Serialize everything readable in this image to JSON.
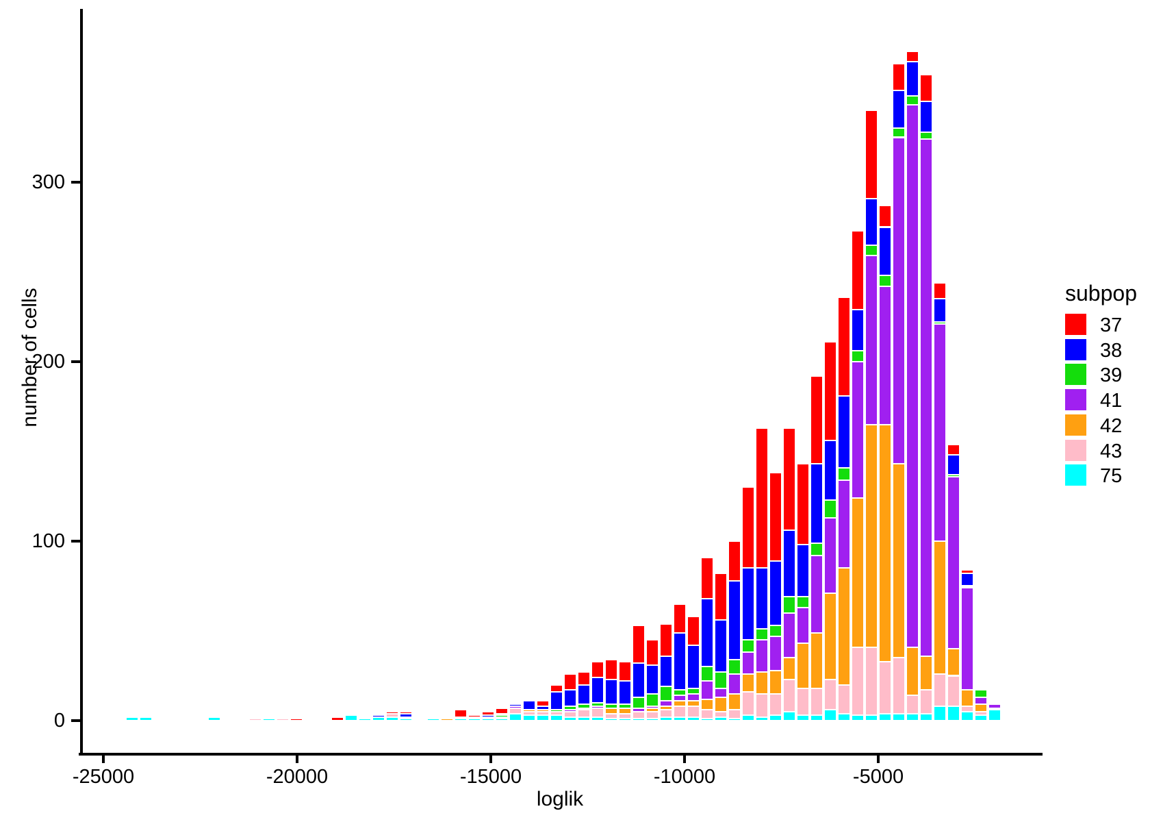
{
  "figure": {
    "background": "#FFFFFF"
  },
  "chart_data": {
    "type": "bar",
    "subtype": "stacked-histogram",
    "title": "",
    "xlabel": "loglik",
    "ylabel": "number of cells",
    "x_ticks": [
      -25000,
      -20000,
      -15000,
      -10000,
      -5000
    ],
    "y_ticks": [
      0,
      100,
      200,
      300
    ],
    "xlim": [
      -25640,
      -760
    ],
    "ylim": [
      0,
      397
    ],
    "grid": false,
    "bin_width": 353,
    "legend": {
      "title": "subpop",
      "position": "right",
      "entries": [
        {
          "label": "37",
          "color": "#FF0000"
        },
        {
          "label": "38",
          "color": "#0000FF"
        },
        {
          "label": "39",
          "color": "#14DD0C"
        },
        {
          "label": "41",
          "color": "#A020F0"
        },
        {
          "label": "42",
          "color": "#FFA011"
        },
        {
          "label": "43",
          "color": "#FFBCC9"
        },
        {
          "label": "75",
          "color": "#00FFFF"
        }
      ]
    },
    "stack_order_bottom_to_top": [
      "75",
      "43",
      "42",
      "41",
      "39",
      "38",
      "37"
    ],
    "bins": [
      {
        "loglik": -24260,
        "counts": {
          "75": 2
        }
      },
      {
        "loglik": -23900,
        "counts": {
          "75": 2
        }
      },
      {
        "loglik": -22140,
        "counts": {
          "75": 2
        }
      },
      {
        "loglik": -21080,
        "counts": {
          "43": 1,
          "38": 1
        }
      },
      {
        "loglik": -20720,
        "counts": {
          "75": 1
        }
      },
      {
        "loglik": -20370,
        "counts": {
          "43": 1
        }
      },
      {
        "loglik": -20020,
        "counts": {
          "37": 1
        }
      },
      {
        "loglik": -18960,
        "counts": {
          "37": 2
        }
      },
      {
        "loglik": -18600,
        "counts": {
          "75": 3,
          "37": 1
        }
      },
      {
        "loglik": -18250,
        "counts": {
          "75": 1
        }
      },
      {
        "loglik": -17900,
        "counts": {
          "75": 2,
          "38": 1
        }
      },
      {
        "loglik": -17540,
        "counts": {
          "75": 2,
          "43": 2,
          "37": 1
        }
      },
      {
        "loglik": -17190,
        "counts": {
          "75": 1,
          "43": 1,
          "38": 2,
          "37": 1
        }
      },
      {
        "loglik": -16480,
        "counts": {
          "75": 1,
          "38": 1
        }
      },
      {
        "loglik": -16130,
        "counts": {
          "42": 1,
          "38": 1
        }
      },
      {
        "loglik": -15780,
        "counts": {
          "75": 1,
          "38": 1,
          "37": 4
        }
      },
      {
        "loglik": -15420,
        "counts": {
          "75": 1,
          "43": 1,
          "37": 1
        }
      },
      {
        "loglik": -15070,
        "counts": {
          "75": 1,
          "43": 1,
          "38": 1,
          "37": 2
        }
      },
      {
        "loglik": -14720,
        "counts": {
          "75": 1,
          "43": 1,
          "39": 1,
          "38": 1,
          "37": 3
        }
      },
      {
        "loglik": -14360,
        "counts": {
          "75": 4,
          "43": 3,
          "41": 1,
          "38": 1,
          "37": 1
        }
      },
      {
        "loglik": -14010,
        "counts": {
          "75": 3,
          "43": 2,
          "42": 1,
          "38": 5,
          "37": 1
        }
      },
      {
        "loglik": -13660,
        "counts": {
          "75": 3,
          "43": 2,
          "42": 1,
          "38": 2,
          "37": 3
        }
      },
      {
        "loglik": -13300,
        "counts": {
          "75": 3,
          "43": 2,
          "39": 1,
          "38": 10,
          "37": 4
        }
      },
      {
        "loglik": -12950,
        "counts": {
          "75": 2,
          "43": 3,
          "41": 1,
          "39": 2,
          "38": 9,
          "37": 9
        }
      },
      {
        "loglik": -12600,
        "counts": {
          "75": 2,
          "43": 4,
          "42": 1,
          "39": 2,
          "38": 11,
          "37": 7
        }
      },
      {
        "loglik": -12240,
        "counts": {
          "75": 2,
          "43": 5,
          "41": 1,
          "39": 2,
          "38": 14,
          "37": 9
        }
      },
      {
        "loglik": -11890,
        "counts": {
          "75": 1,
          "43": 3,
          "42": 3,
          "39": 2,
          "38": 14,
          "37": 11
        }
      },
      {
        "loglik": -11540,
        "counts": {
          "75": 1,
          "43": 3,
          "42": 3,
          "39": 2,
          "38": 13,
          "37": 11
        }
      },
      {
        "loglik": -11180,
        "counts": {
          "75": 1,
          "43": 4,
          "41": 2,
          "39": 6,
          "38": 19,
          "37": 21
        }
      },
      {
        "loglik": -10830,
        "counts": {
          "75": 1,
          "43": 4,
          "42": 2,
          "41": 1,
          "39": 7,
          "38": 16,
          "37": 14
        }
      },
      {
        "loglik": -10480,
        "counts": {
          "75": 2,
          "43": 4,
          "42": 2,
          "41": 3,
          "39": 8,
          "38": 17,
          "37": 18
        }
      },
      {
        "loglik": -10120,
        "counts": {
          "75": 2,
          "43": 6,
          "42": 3,
          "41": 3,
          "39": 3,
          "38": 32,
          "37": 16
        }
      },
      {
        "loglik": -9770,
        "counts": {
          "75": 2,
          "43": 6,
          "42": 3,
          "41": 4,
          "39": 3,
          "38": 24,
          "37": 16
        }
      },
      {
        "loglik": -9420,
        "counts": {
          "75": 1,
          "43": 5,
          "42": 6,
          "41": 10,
          "39": 8,
          "38": 38,
          "37": 23
        }
      },
      {
        "loglik": -9060,
        "counts": {
          "75": 2,
          "43": 3,
          "42": 8,
          "41": 5,
          "39": 9,
          "38": 29,
          "37": 26
        }
      },
      {
        "loglik": -8710,
        "counts": {
          "75": 1,
          "43": 5,
          "42": 9,
          "41": 11,
          "39": 8,
          "38": 44,
          "37": 22
        }
      },
      {
        "loglik": -8360,
        "counts": {
          "75": 3,
          "43": 13,
          "42": 10,
          "41": 12,
          "39": 7,
          "38": 40,
          "37": 45
        }
      },
      {
        "loglik": -8000,
        "counts": {
          "75": 2,
          "43": 13,
          "42": 12,
          "41": 18,
          "39": 6,
          "38": 34,
          "37": 78
        }
      },
      {
        "loglik": -7650,
        "counts": {
          "75": 3,
          "43": 12,
          "42": 13,
          "41": 19,
          "39": 6,
          "38": 36,
          "37": 49
        }
      },
      {
        "loglik": -7300,
        "counts": {
          "75": 5,
          "43": 18,
          "42": 12,
          "41": 25,
          "39": 9,
          "38": 37,
          "37": 57
        }
      },
      {
        "loglik": -6940,
        "counts": {
          "75": 3,
          "43": 15,
          "42": 25,
          "41": 20,
          "39": 6,
          "38": 29,
          "37": 45
        }
      },
      {
        "loglik": -6590,
        "counts": {
          "75": 3,
          "43": 15,
          "42": 31,
          "41": 43,
          "39": 7,
          "38": 44,
          "37": 49
        }
      },
      {
        "loglik": -6240,
        "counts": {
          "75": 6,
          "43": 17,
          "42": 48,
          "41": 42,
          "39": 10,
          "38": 33,
          "37": 55
        }
      },
      {
        "loglik": -5880,
        "counts": {
          "75": 4,
          "43": 16,
          "42": 65,
          "41": 49,
          "39": 7,
          "38": 40,
          "37": 55
        }
      },
      {
        "loglik": -5530,
        "counts": {
          "75": 3,
          "43": 38,
          "42": 83,
          "41": 76,
          "39": 6,
          "38": 23,
          "37": 44
        }
      },
      {
        "loglik": -5180,
        "counts": {
          "75": 3,
          "43": 38,
          "42": 124,
          "41": 94,
          "39": 6,
          "38": 26,
          "37": 49
        }
      },
      {
        "loglik": -4820,
        "counts": {
          "75": 4,
          "43": 29,
          "42": 132,
          "41": 77,
          "39": 6,
          "38": 27,
          "37": 12
        }
      },
      {
        "loglik": -4470,
        "counts": {
          "75": 4,
          "43": 31,
          "42": 108,
          "41": 182,
          "39": 5,
          "38": 21,
          "37": 15
        }
      },
      {
        "loglik": -4120,
        "counts": {
          "75": 4,
          "43": 10,
          "42": 27,
          "41": 302,
          "39": 5,
          "38": 19,
          "37": 6
        }
      },
      {
        "loglik": -3760,
        "counts": {
          "75": 4,
          "43": 13,
          "42": 19,
          "41": 288,
          "39": 4,
          "38": 17,
          "37": 15
        }
      },
      {
        "loglik": -3410,
        "counts": {
          "75": 8,
          "43": 18,
          "42": 74,
          "41": 121,
          "39": 1,
          "38": 13,
          "37": 9
        }
      },
      {
        "loglik": -3060,
        "counts": {
          "75": 8,
          "43": 17,
          "42": 15,
          "41": 96,
          "39": 1,
          "38": 11,
          "37": 6
        }
      },
      {
        "loglik": -2700,
        "counts": {
          "75": 5,
          "43": 3,
          "42": 9,
          "41": 57,
          "39": 1,
          "38": 7,
          "37": 2
        }
      },
      {
        "loglik": -2350,
        "counts": {
          "75": 3,
          "43": 2,
          "42": 4,
          "41": 4,
          "39": 4,
          "37": 1
        }
      },
      {
        "loglik": -2000,
        "counts": {
          "75": 6,
          "43": 1,
          "41": 2
        }
      }
    ]
  }
}
